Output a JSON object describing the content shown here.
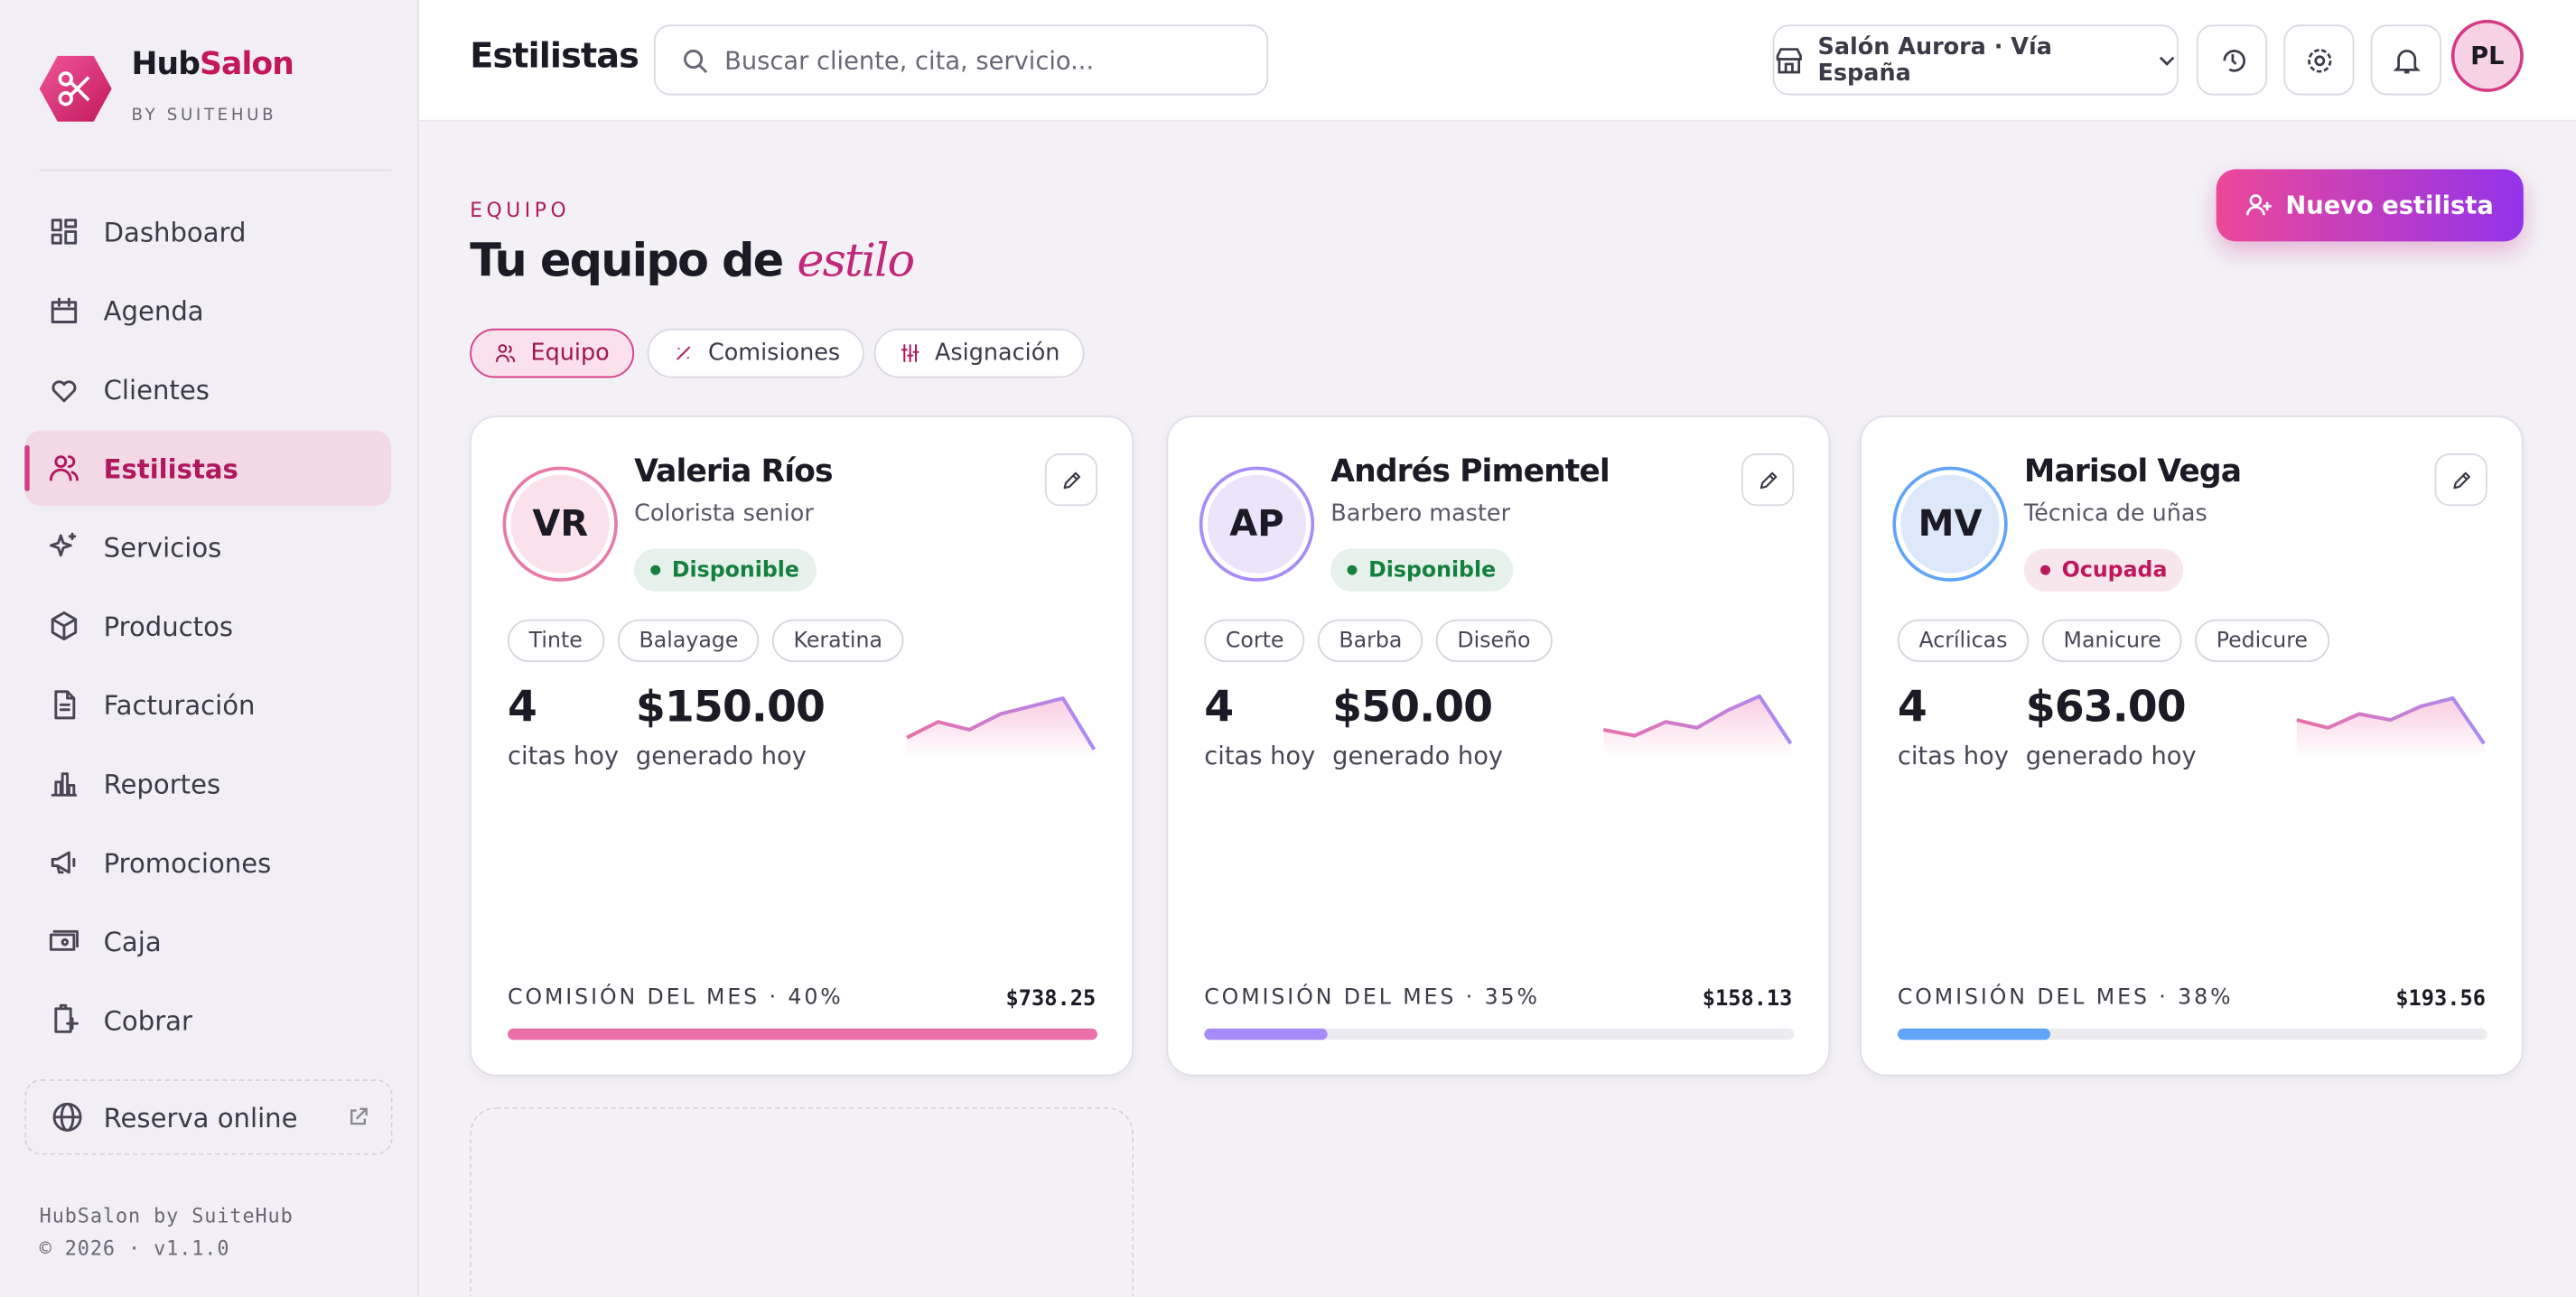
{
  "sidebar": {
    "brand_a": "Hub",
    "brand_b": "Salon",
    "tagline": "BY SUITEHUB",
    "nav": [
      "Dashboard",
      "Agenda",
      "Clientes",
      "Estilistas",
      "Servicios",
      "Productos",
      "Facturación",
      "Reportes",
      "Promociones",
      "Caja",
      "Cobrar"
    ],
    "active": 3,
    "reserve": "Reserva online",
    "footer": [
      "HubSalon by SuiteHub",
      "© 2026 · v1.1.0"
    ]
  },
  "header": {
    "title": "Estilistas",
    "search": "Buscar cliente, cita, servicio...",
    "salon": "Salón Aurora · Vía España",
    "avatar": "PL"
  },
  "page": {
    "eyebrow": "EQUIPO",
    "heading": "Tu equipo de",
    "accent": "estilo",
    "button": "Nuevo estilista",
    "tabs": [
      "Equipo",
      "Comisiones",
      "Asignación"
    ],
    "active_tab": 0
  },
  "stylists": [
    {
      "initials": "VR",
      "name": "Valeria Ríos",
      "role": "Colorista senior",
      "status": "Disponible",
      "status_color": "#15803d",
      "ring_color": "#e879a8",
      "avatar_bg": "#fbe1ec",
      "tags": [
        "Tinte",
        "Balayage",
        "Keratina"
      ],
      "appointments": 4,
      "appointments_label": "citas hoy",
      "revenue": "$150.00",
      "revenue_label": "generado hoy",
      "commission_label": "COMISIÓN DEL MES · 40%",
      "commission": "$738.25",
      "progress": 100,
      "color": "#ec6fa8",
      "spark": [
        20,
        36,
        28,
        44,
        52,
        60,
        8
      ]
    },
    {
      "initials": "AP",
      "name": "Andrés Pimentel",
      "role": "Barbero master",
      "status": "Disponible",
      "status_color": "#15803d",
      "ring_color": "#a78bfa",
      "avatar_bg": "#ebe4fb",
      "tags": [
        "Corte",
        "Barba",
        "Diseño"
      ],
      "appointments": 4,
      "appointments_label": "citas hoy",
      "revenue": "$50.00",
      "revenue_label": "generado hoy",
      "commission_label": "COMISIÓN DEL MES · 35%",
      "commission": "$158.13",
      "progress": 21,
      "color": "#a78bfa",
      "spark": [
        28,
        22,
        36,
        30,
        48,
        62,
        14
      ]
    },
    {
      "initials": "MV",
      "name": "Marisol Vega",
      "role": "Técnica de uñas",
      "status": "Ocupada",
      "status_color": "#be185d",
      "ring_color": "#60a5fa",
      "avatar_bg": "#dde9fb",
      "tags": [
        "Acrílicas",
        "Manicure",
        "Pedicure"
      ],
      "appointments": 4,
      "appointments_label": "citas hoy",
      "revenue": "$63.00",
      "revenue_label": "generado hoy",
      "commission_label": "COMISIÓN DEL MES · 38%",
      "commission": "$193.56",
      "progress": 26,
      "color": "#60a5fa",
      "spark": [
        38,
        30,
        44,
        38,
        52,
        60,
        14
      ]
    }
  ]
}
